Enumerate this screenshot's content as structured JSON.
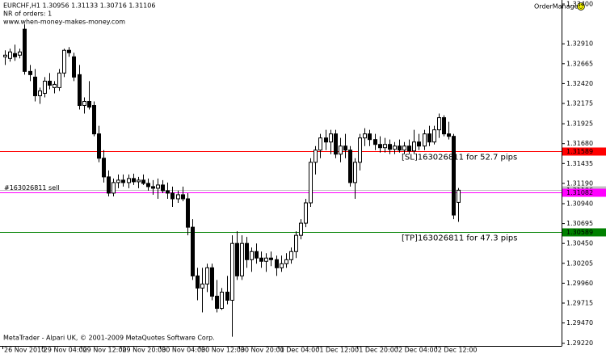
{
  "chart_data": {
    "type": "candlestick",
    "title": "EURCHF,H1  1.30956 1.31133 1.30716 1.31106",
    "subtitle": "NR of orders: 1",
    "site": "www.when-money-makes-money.com",
    "indicator": "OrderManager",
    "footer": "MetaTrader - Alpari UK, © 2001-2009 MetaQuotes Software Corp.",
    "bull_color": "#ffffff",
    "bear_color": "#000000",
    "ohlc": [
      [
        1.3275,
        1.3283,
        1.3265,
        1.3277
      ],
      [
        1.3273,
        1.3285,
        1.3269,
        1.3281
      ],
      [
        1.3279,
        1.329,
        1.327,
        1.3275
      ],
      [
        1.3277,
        1.3285,
        1.3273,
        1.3281
      ],
      [
        1.3309,
        1.3315,
        1.3253,
        1.3257
      ],
      [
        1.3257,
        1.3265,
        1.3245,
        1.3253
      ],
      [
        1.325,
        1.326,
        1.322,
        1.3227
      ],
      [
        1.3227,
        1.3237,
        1.3217,
        1.3233
      ],
      [
        1.323,
        1.325,
        1.3225,
        1.3245
      ],
      [
        1.3245,
        1.3255,
        1.3235,
        1.324
      ],
      [
        1.3237,
        1.3245,
        1.323,
        1.3241
      ],
      [
        1.3237,
        1.326,
        1.3233,
        1.3255
      ],
      [
        1.3255,
        1.3285,
        1.325,
        1.3283
      ],
      [
        1.3283,
        1.3287,
        1.3275,
        1.328
      ],
      [
        1.3275,
        1.328,
        1.3245,
        1.325
      ],
      [
        1.3253,
        1.3265,
        1.321,
        1.3215
      ],
      [
        1.3215,
        1.3225,
        1.3205,
        1.322
      ],
      [
        1.322,
        1.3245,
        1.321,
        1.3213
      ],
      [
        1.3215,
        1.322,
        1.3177,
        1.318
      ],
      [
        1.318,
        1.319,
        1.3145,
        1.315
      ],
      [
        1.315,
        1.316,
        1.312,
        1.3127
      ],
      [
        1.3127,
        1.3135,
        1.3103,
        1.3107
      ],
      [
        1.3107,
        1.3125,
        1.3103,
        1.312
      ],
      [
        1.312,
        1.313,
        1.3113,
        1.3123
      ],
      [
        1.3123,
        1.313,
        1.3115,
        1.312
      ],
      [
        1.312,
        1.313,
        1.3113,
        1.3125
      ],
      [
        1.3125,
        1.3131,
        1.3117,
        1.3121
      ],
      [
        1.3121,
        1.3127,
        1.3113,
        1.3123
      ],
      [
        1.3123,
        1.313,
        1.3117,
        1.3119
      ],
      [
        1.3119,
        1.3125,
        1.311,
        1.3115
      ],
      [
        1.3115,
        1.3123,
        1.3105,
        1.3113
      ],
      [
        1.3113,
        1.3125,
        1.31,
        1.3117
      ],
      [
        1.3117,
        1.3123,
        1.3107,
        1.311
      ],
      [
        1.311,
        1.312,
        1.31,
        1.3107
      ],
      [
        1.3107,
        1.3115,
        1.309,
        1.31
      ],
      [
        1.31,
        1.311,
        1.3095,
        1.3105
      ],
      [
        1.3105,
        1.3115,
        1.3097,
        1.31
      ],
      [
        1.31,
        1.3107,
        1.3055,
        1.3065
      ],
      [
        1.3065,
        1.3075,
        1.3,
        1.3005
      ],
      [
        1.3005,
        1.3015,
        1.2975,
        1.299
      ],
      [
        1.299,
        1.3015,
        1.296,
        1.2995
      ],
      [
        1.2995,
        1.302,
        1.2985,
        1.3015
      ],
      [
        1.3015,
        1.302,
        1.2975,
        1.298
      ],
      [
        1.298,
        1.3,
        1.296,
        1.2965
      ],
      [
        1.2965,
        1.299,
        1.2963,
        1.2985
      ],
      [
        1.2985,
        1.3005,
        1.297,
        1.2975
      ],
      [
        1.2975,
        1.3055,
        1.293,
        1.3045
      ],
      [
        1.3045,
        1.306,
        1.3,
        1.3005
      ],
      [
        1.3005,
        1.3055,
        1.3,
        1.3045
      ],
      [
        1.3045,
        1.3053,
        1.3015,
        1.3025
      ],
      [
        1.3025,
        1.304,
        1.301,
        1.3035
      ],
      [
        1.3035,
        1.3045,
        1.302,
        1.3027
      ],
      [
        1.3027,
        1.3035,
        1.3015,
        1.3023
      ],
      [
        1.3023,
        1.3033,
        1.301,
        1.3027
      ],
      [
        1.3027,
        1.3035,
        1.3017,
        1.3025
      ],
      [
        1.3025,
        1.303,
        1.3005,
        1.3015
      ],
      [
        1.3015,
        1.303,
        1.301,
        1.302
      ],
      [
        1.302,
        1.3033,
        1.3015,
        1.3025
      ],
      [
        1.3025,
        1.304,
        1.302,
        1.3035
      ],
      [
        1.3035,
        1.306,
        1.3027,
        1.3055
      ],
      [
        1.3055,
        1.3075,
        1.305,
        1.307
      ],
      [
        1.307,
        1.31,
        1.3065,
        1.3095
      ],
      [
        1.3095,
        1.315,
        1.309,
        1.3145
      ],
      [
        1.3145,
        1.3165,
        1.313,
        1.316
      ],
      [
        1.316,
        1.318,
        1.315,
        1.3175
      ],
      [
        1.3175,
        1.3185,
        1.316,
        1.317
      ],
      [
        1.317,
        1.3185,
        1.3155,
        1.318
      ],
      [
        1.318,
        1.3185,
        1.315,
        1.3155
      ],
      [
        1.3155,
        1.3175,
        1.3145,
        1.3165
      ],
      [
        1.3165,
        1.318,
        1.315,
        1.316
      ],
      [
        1.316,
        1.3165,
        1.3115,
        1.312
      ],
      [
        1.312,
        1.315,
        1.31,
        1.3145
      ],
      [
        1.3145,
        1.318,
        1.3135,
        1.3175
      ],
      [
        1.3175,
        1.3187,
        1.3165,
        1.318
      ],
      [
        1.318,
        1.3185,
        1.3165,
        1.3173
      ],
      [
        1.3173,
        1.318,
        1.316,
        1.3167
      ],
      [
        1.3167,
        1.3177,
        1.3157,
        1.3163
      ],
      [
        1.3163,
        1.3175,
        1.3157,
        1.3167
      ],
      [
        1.3167,
        1.3173,
        1.3155,
        1.3161
      ],
      [
        1.3161,
        1.317,
        1.3155,
        1.3165
      ],
      [
        1.3165,
        1.3173,
        1.3157,
        1.316
      ],
      [
        1.316,
        1.317,
        1.3155,
        1.3165
      ],
      [
        1.3165,
        1.3173,
        1.3155,
        1.3159
      ],
      [
        1.3159,
        1.3185,
        1.3155,
        1.317
      ],
      [
        1.317,
        1.318,
        1.316,
        1.3165
      ],
      [
        1.3165,
        1.3185,
        1.316,
        1.318
      ],
      [
        1.318,
        1.319,
        1.3165,
        1.317
      ],
      [
        1.317,
        1.319,
        1.3167,
        1.3185
      ],
      [
        1.3185,
        1.3205,
        1.3175,
        1.32
      ],
      [
        1.32,
        1.3203,
        1.3177,
        1.318
      ],
      [
        1.318,
        1.3195,
        1.3173,
        1.3177
      ],
      [
        1.3177,
        1.318,
        1.3075,
        1.308
      ],
      [
        1.30956,
        1.31133,
        1.30716,
        1.31106
      ]
    ],
    "time_labels": [
      "26 Nov 2010",
      "29 Nov 04:00",
      "29 Nov 12:00",
      "29 Nov 20:00",
      "30 Nov 04:00",
      "30 Nov 12:00",
      "30 Nov 20:00",
      "1 Dec 04:00",
      "1 Dec 12:00",
      "1 Dec 20:00",
      "2 Dec 04:00",
      "2 Dec 12:00"
    ],
    "ylim": [
      1.29187,
      1.3345
    ],
    "yticks": [
      {
        "value": 1.334,
        "label": "1.33400"
      },
      {
        "value": 1.3291,
        "label": "1.32910"
      },
      {
        "value": 1.32665,
        "label": "1.32665"
      },
      {
        "value": 1.3242,
        "label": "1.32420"
      },
      {
        "value": 1.32175,
        "label": "1.32175"
      },
      {
        "value": 1.31925,
        "label": "1.31925"
      },
      {
        "value": 1.3168,
        "label": "1.31680"
      },
      {
        "value": 1.31435,
        "label": "1.31435"
      },
      {
        "value": 1.3119,
        "label": "1.31190"
      },
      {
        "value": 1.3094,
        "label": "1.30940"
      },
      {
        "value": 1.30695,
        "label": "1.30695"
      },
      {
        "value": 1.3045,
        "label": "1.30450"
      },
      {
        "value": 1.30205,
        "label": "1.30205"
      },
      {
        "value": 1.2996,
        "label": "1.29960"
      },
      {
        "value": 1.29715,
        "label": "1.29715"
      },
      {
        "value": 1.2947,
        "label": "1.29470"
      },
      {
        "value": 1.2922,
        "label": "1.29220"
      }
    ],
    "levels": [
      {
        "price": 1.31589,
        "color": "#ff0000",
        "text": "[SL]163026811  for 52.7 pips"
      },
      {
        "price": 1.31106,
        "color": "#c0c0c0"
      },
      {
        "price": 1.31082,
        "color": "#ff00ff",
        "text": "#163026811 sell"
      },
      {
        "price": 1.30589,
        "color": "#008000",
        "text": "[TP]163026811  for 47.3 pips"
      }
    ]
  }
}
